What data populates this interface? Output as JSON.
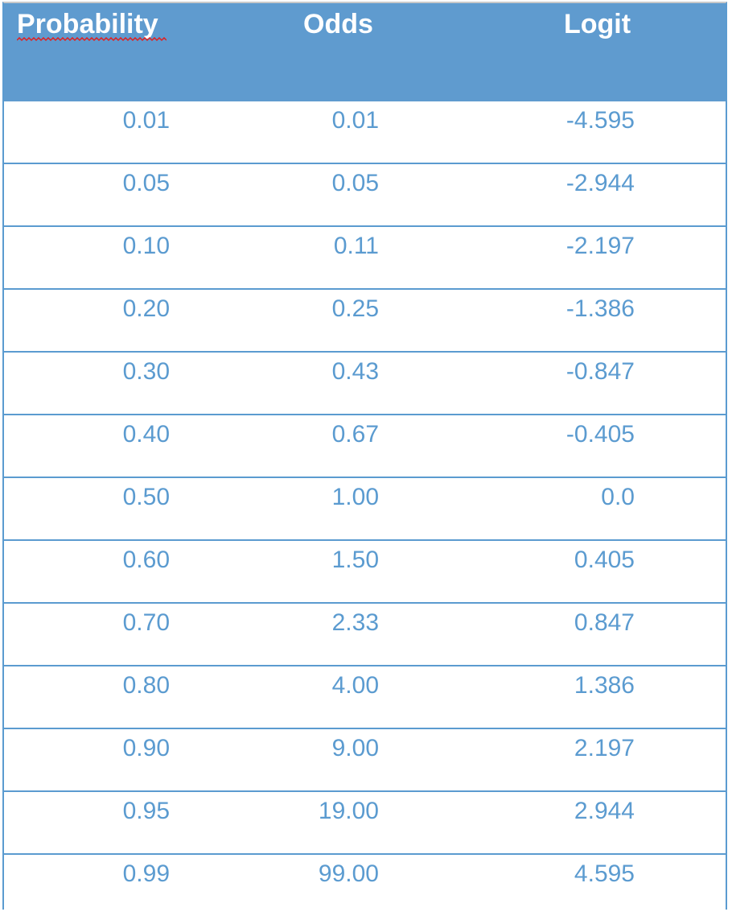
{
  "table": {
    "headers": [
      "Probability",
      "Odds",
      "Logit"
    ],
    "rows": [
      [
        "0.01",
        "0.01",
        "-4.595"
      ],
      [
        "0.05",
        "0.05",
        "-2.944"
      ],
      [
        "0.10",
        "0.11",
        "-2.197"
      ],
      [
        "0.20",
        "0.25",
        "-1.386"
      ],
      [
        "0.30",
        "0.43",
        "-0.847"
      ],
      [
        "0.40",
        "0.67",
        "-0.405"
      ],
      [
        "0.50",
        "1.00",
        "0.0"
      ],
      [
        "0.60",
        "1.50",
        "0.405"
      ],
      [
        "0.70",
        "2.33",
        "0.847"
      ],
      [
        "0.80",
        "4.00",
        "1.386"
      ],
      [
        "0.90",
        "9.00",
        "2.197"
      ],
      [
        "0.95",
        "19.00",
        "2.944"
      ],
      [
        "0.99",
        "99.00",
        "4.595"
      ]
    ]
  },
  "colors": {
    "header_bg": "#5f9bcf",
    "header_text": "#ffffff",
    "cell_text": "#5b9bd0",
    "grid_line": "#5b9bd0",
    "spellcheck_underline": "#e02020"
  }
}
